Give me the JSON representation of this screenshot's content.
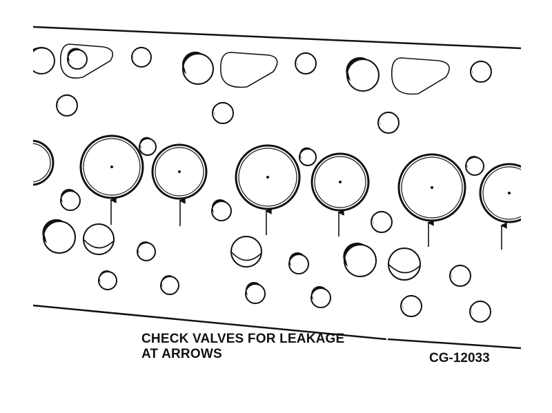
{
  "caption": {
    "line1": "CHECK VALVES FOR LEAKAGE",
    "line2": "AT ARROWS"
  },
  "figure_code": "CG-12033",
  "colors": {
    "ink": "#111111",
    "paper": "#ffffff"
  },
  "valve_count": 6,
  "arrow_count": 6
}
